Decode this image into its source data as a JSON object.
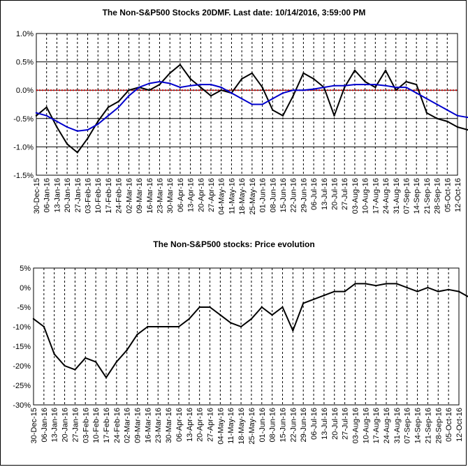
{
  "chart_data": [
    {
      "type": "line",
      "title": "The Non-S&P500 Stocks 20DMF. Last date: 10/14/2016, 3:59:00 PM",
      "ylim": [
        -1.5,
        1.0
      ],
      "yticks": [
        {
          "value": 1.0,
          "label": "1.0%"
        },
        {
          "value": 0.5,
          "label": "0.5%"
        },
        {
          "value": 0.0,
          "label": "0.0%"
        },
        {
          "value": -0.5,
          "label": "-0.5%"
        },
        {
          "value": -1.0,
          "label": "-1.0%"
        },
        {
          "value": -1.5,
          "label": "-1.5%"
        }
      ],
      "xticks": [
        "30-Dec-15",
        "06-Jan-16",
        "13-Jan-16",
        "20-Jan-16",
        "27-Jan-16",
        "03-Feb-16",
        "10-Feb-16",
        "17-Feb-16",
        "24-Feb-16",
        "02-Mar-16",
        "09-Mar-16",
        "16-Mar-16",
        "23-Mar-16",
        "30-Mar-16",
        "06-Apr-16",
        "13-Apr-16",
        "20-Apr-16",
        "27-Apr-16",
        "04-May-16",
        "11-May-16",
        "18-May-16",
        "25-May-16",
        "01-Jun-16",
        "08-Jun-16",
        "15-Jun-16",
        "22-Jun-16",
        "29-Jun-16",
        "06-Jul-16",
        "13-Jul-16",
        "20-Jul-16",
        "27-Jul-16",
        "03-Aug-16",
        "10-Aug-16",
        "17-Aug-16",
        "24-Aug-16",
        "31-Aug-16",
        "07-Sep-16",
        "14-Sep-16",
        "21-Sep-16",
        "28-Sep-16",
        "05-Oct-16",
        "12-Oct-16"
      ],
      "grid": true,
      "reference_line": {
        "value": 0.0,
        "color": "#d00000"
      },
      "series": [
        {
          "color": "#000000",
          "x": [
            0,
            1,
            2,
            3,
            4,
            5,
            6,
            7,
            8,
            9,
            10,
            11,
            12,
            13,
            14,
            15,
            16,
            17,
            18,
            19,
            20,
            21,
            22,
            23,
            24,
            25,
            26,
            27,
            28,
            29,
            30,
            31,
            32,
            33,
            34,
            35,
            36,
            37,
            38,
            39,
            40,
            41,
            42
          ],
          "values": [
            -0.45,
            -0.3,
            -0.65,
            -0.95,
            -1.1,
            -0.85,
            -0.55,
            -0.3,
            -0.2,
            0.0,
            0.05,
            0.0,
            0.1,
            0.3,
            0.45,
            0.2,
            0.05,
            -0.1,
            0.0,
            -0.05,
            0.2,
            0.3,
            0.05,
            -0.35,
            -0.45,
            -0.1,
            0.3,
            0.2,
            0.05,
            -0.45,
            0.05,
            0.35,
            0.15,
            0.05,
            0.35,
            0.0,
            0.15,
            0.1,
            -0.4,
            -0.5,
            -0.55,
            -0.65,
            -0.7
          ]
        },
        {
          "color": "#0000cc",
          "x": [
            0,
            1,
            2,
            3,
            4,
            5,
            6,
            7,
            8,
            9,
            10,
            11,
            12,
            13,
            14,
            15,
            16,
            17,
            18,
            19,
            20,
            21,
            22,
            23,
            24,
            25,
            26,
            27,
            28,
            29,
            30,
            31,
            32,
            33,
            34,
            35,
            36,
            37,
            38,
            39,
            40,
            41,
            42
          ],
          "values": [
            -0.4,
            -0.45,
            -0.55,
            -0.65,
            -0.72,
            -0.7,
            -0.6,
            -0.45,
            -0.3,
            -0.1,
            0.05,
            0.12,
            0.15,
            0.12,
            0.05,
            0.08,
            0.1,
            0.1,
            0.05,
            -0.05,
            -0.15,
            -0.25,
            -0.25,
            -0.15,
            -0.05,
            0.0,
            0.0,
            0.02,
            0.05,
            0.08,
            0.08,
            0.1,
            0.1,
            0.1,
            0.08,
            0.05,
            0.05,
            -0.05,
            -0.15,
            -0.25,
            -0.35,
            -0.45,
            -0.48
          ]
        }
      ]
    },
    {
      "type": "line",
      "title": "The Non-S&P500 stocks: Price evolution",
      "ylim": [
        -30,
        5
      ],
      "yticks": [
        {
          "value": 5,
          "label": "5%"
        },
        {
          "value": 0,
          "label": "0%"
        },
        {
          "value": -5,
          "label": "-5%"
        },
        {
          "value": -10,
          "label": "-10%"
        },
        {
          "value": -15,
          "label": "-15%"
        },
        {
          "value": -20,
          "label": "-20%"
        },
        {
          "value": -25,
          "label": "-25%"
        },
        {
          "value": -30,
          "label": "-30%"
        }
      ],
      "xticks": [
        "30-Dec-15",
        "06-Jan-16",
        "13-Jan-16",
        "20-Jan-16",
        "27-Jan-16",
        "03-Feb-16",
        "10-Feb-16",
        "17-Feb-16",
        "24-Feb-16",
        "02-Mar-16",
        "09-Mar-16",
        "16-Mar-16",
        "23-Mar-16",
        "30-Mar-16",
        "06-Apr-16",
        "13-Apr-16",
        "20-Apr-16",
        "27-Apr-16",
        "04-May-16",
        "11-May-16",
        "18-May-16",
        "25-May-16",
        "01-Jun-16",
        "08-Jun-16",
        "15-Jun-16",
        "22-Jun-16",
        "29-Jun-16",
        "06-Jul-16",
        "13-Jul-16",
        "20-Jul-16",
        "27-Jul-16",
        "03-Aug-16",
        "10-Aug-16",
        "17-Aug-16",
        "24-Aug-16",
        "31-Aug-16",
        "07-Sep-16",
        "14-Sep-16",
        "21-Sep-16",
        "28-Sep-16",
        "05-Oct-16",
        "12-Oct-16"
      ],
      "grid": true,
      "series": [
        {
          "color": "#000000",
          "x": [
            0,
            1,
            2,
            3,
            4,
            5,
            6,
            7,
            8,
            9,
            10,
            11,
            12,
            13,
            14,
            15,
            16,
            17,
            18,
            19,
            20,
            21,
            22,
            23,
            24,
            25,
            26,
            27,
            28,
            29,
            30,
            31,
            32,
            33,
            34,
            35,
            36,
            37,
            38,
            39,
            40,
            41,
            42
          ],
          "values": [
            -8,
            -10,
            -17,
            -20,
            -21,
            -18,
            -19,
            -23,
            -19,
            -16,
            -12,
            -10,
            -10,
            -10,
            -10,
            -8,
            -5,
            -5,
            -7,
            -9,
            -10,
            -8,
            -5,
            -7,
            -5,
            -11,
            -4,
            -3,
            -2,
            -1,
            -1,
            1,
            1,
            0.5,
            1,
            1,
            0,
            -1,
            0,
            -1,
            -0.5,
            -1,
            -2.5
          ]
        }
      ]
    }
  ]
}
